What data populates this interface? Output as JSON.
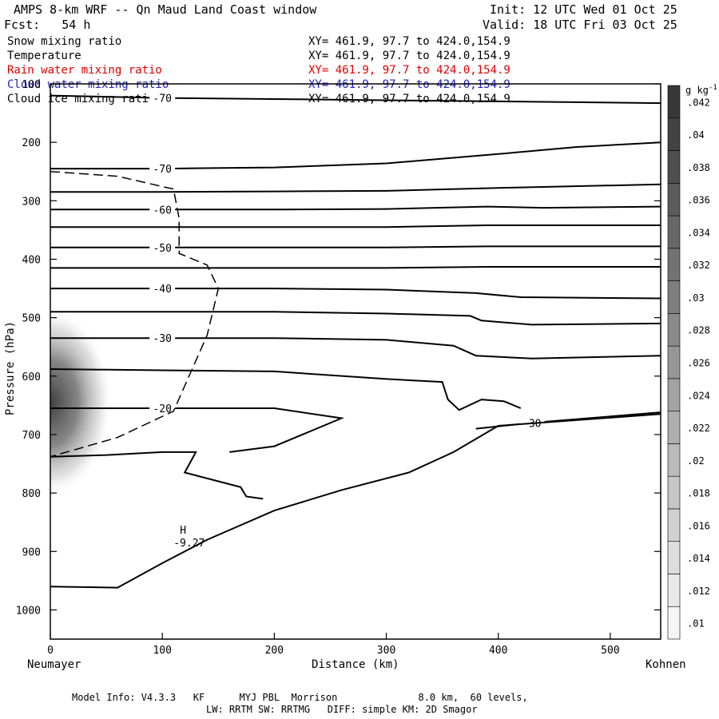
{
  "header": {
    "title": "AMPS 8-km WRF -- Qn Maud Land Coast window",
    "init": "Init: 12 UTC Wed 01 Oct 25",
    "fcst": "Fcst:   54 h",
    "valid": "Valid: 18 UTC Fri 03 Oct 25"
  },
  "fields": [
    {
      "name": "Snow mixing ratio",
      "xy": "XY= 461.9, 97.7 to 424.0,154.9",
      "color": "#000000"
    },
    {
      "name": "Temperature",
      "xy": "XY= 461.9, 97.7 to 424.0,154.9",
      "color": "#000000"
    },
    {
      "name": "Rain water mixing ratio",
      "xy": "XY= 461.9, 97.7 to 424.0,154.9",
      "color": "#e00000"
    },
    {
      "name": "Cloud water mixing ratio",
      "xy": "XY= 461.9, 97.7 to 424.0,154.9",
      "color": "#2020c0"
    },
    {
      "name": "Cloud ice mixing ratio",
      "xy": "XY= 461.9, 97.7 to 424.0,154.9",
      "color": "#000000"
    }
  ],
  "chart_data": {
    "type": "heatmap",
    "xlabel": "Distance (km)",
    "ylabel": "Pressure (hPa)",
    "xlim": [
      0,
      545
    ],
    "ylim": [
      1050,
      100
    ],
    "x_ticks": [
      0,
      100,
      200,
      300,
      400,
      500
    ],
    "y_ticks": [
      100,
      200,
      300,
      400,
      500,
      600,
      700,
      800,
      900,
      1000
    ],
    "left_endpoint": "Neumayer",
    "right_endpoint": "Kohnen",
    "colorbar": {
      "unit": "g kg",
      "unit_exp": "-1",
      "levels": [
        0.01,
        0.012,
        0.014,
        0.016,
        0.018,
        0.02,
        0.022,
        0.024,
        0.026,
        0.028,
        0.03,
        0.032,
        0.034,
        0.036,
        0.038,
        0.04,
        0.042
      ],
      "labels": [
        ".01",
        ".012",
        ".014",
        ".016",
        ".018",
        ".02",
        ".022",
        ".024",
        ".026",
        ".028",
        ".03",
        ".032",
        ".034",
        ".036",
        ".038",
        ".04",
        ".042"
      ]
    },
    "snow_max": {
      "x": 0,
      "p": 645,
      "value": 0.03
    },
    "temperature_contours": [
      {
        "label": "-70",
        "points": [
          [
            0,
            120
          ],
          [
            100,
            124
          ],
          [
            200,
            126
          ],
          [
            300,
            128
          ],
          [
            400,
            130
          ],
          [
            545,
            133
          ]
        ]
      },
      {
        "label": "-70",
        "points": [
          [
            0,
            245
          ],
          [
            100,
            245
          ],
          [
            200,
            243
          ],
          [
            300,
            236
          ],
          [
            400,
            220
          ],
          [
            470,
            208
          ],
          [
            545,
            200
          ]
        ]
      },
      {
        "label": "",
        "points": [
          [
            0,
            285
          ],
          [
            100,
            285
          ],
          [
            200,
            284
          ],
          [
            300,
            283
          ],
          [
            400,
            278
          ],
          [
            545,
            272
          ]
        ]
      },
      {
        "label": "-60",
        "points": [
          [
            0,
            315
          ],
          [
            100,
            315
          ],
          [
            200,
            315
          ],
          [
            300,
            314
          ],
          [
            390,
            310
          ],
          [
            440,
            312
          ],
          [
            545,
            310
          ]
        ]
      },
      {
        "label": "",
        "points": [
          [
            0,
            345
          ],
          [
            100,
            345
          ],
          [
            200,
            345
          ],
          [
            300,
            345
          ],
          [
            390,
            342
          ],
          [
            440,
            342
          ],
          [
            545,
            342
          ]
        ]
      },
      {
        "label": "-50",
        "points": [
          [
            0,
            380
          ],
          [
            100,
            380
          ],
          [
            200,
            380
          ],
          [
            300,
            380
          ],
          [
            390,
            378
          ],
          [
            440,
            378
          ],
          [
            545,
            378
          ]
        ]
      },
      {
        "label": "",
        "points": [
          [
            0,
            415
          ],
          [
            100,
            415
          ],
          [
            200,
            415
          ],
          [
            300,
            415
          ],
          [
            390,
            413
          ],
          [
            440,
            413
          ],
          [
            545,
            413
          ]
        ]
      },
      {
        "label": "-40",
        "points": [
          [
            0,
            450
          ],
          [
            100,
            450
          ],
          [
            200,
            450
          ],
          [
            300,
            452
          ],
          [
            380,
            458
          ],
          [
            420,
            465
          ],
          [
            545,
            467
          ]
        ]
      },
      {
        "label": "",
        "points": [
          [
            0,
            490
          ],
          [
            100,
            490
          ],
          [
            200,
            490
          ],
          [
            300,
            493
          ],
          [
            375,
            497
          ],
          [
            385,
            505
          ],
          [
            430,
            512
          ],
          [
            545,
            510
          ]
        ]
      },
      {
        "label": "-30",
        "points": [
          [
            0,
            535
          ],
          [
            100,
            535
          ],
          [
            200,
            535
          ],
          [
            300,
            538
          ],
          [
            360,
            548
          ],
          [
            380,
            565
          ],
          [
            430,
            570
          ],
          [
            545,
            565
          ]
        ]
      },
      {
        "label": "",
        "points": [
          [
            0,
            588
          ],
          [
            100,
            590
          ],
          [
            200,
            592
          ],
          [
            300,
            605
          ],
          [
            350,
            610
          ],
          [
            355,
            640
          ],
          [
            365,
            658
          ],
          [
            385,
            640
          ],
          [
            405,
            643
          ],
          [
            420,
            655
          ]
        ]
      },
      {
        "label": "-20",
        "points": [
          [
            0,
            655
          ],
          [
            100,
            655
          ],
          [
            200,
            655
          ],
          [
            260,
            672
          ],
          [
            200,
            720
          ],
          [
            160,
            730
          ]
        ]
      },
      {
        "label": "-30",
        "points": [
          [
            380,
            690
          ],
          [
            430,
            680
          ],
          [
            545,
            662
          ]
        ]
      },
      {
        "label": "",
        "points": [
          [
            0,
            738
          ],
          [
            50,
            735
          ],
          [
            100,
            730
          ],
          [
            130,
            730
          ],
          [
            120,
            765
          ],
          [
            170,
            790
          ],
          [
            175,
            806
          ],
          [
            190,
            810
          ]
        ]
      }
    ],
    "annotation": {
      "label": "H",
      "value": "-9.27",
      "x": 120,
      "p": 875
    }
  },
  "footer": {
    "line1": "Model Info: V4.3.3   KF      MYJ PBL  Morrison              8.0 km,  60 levels,",
    "line2": "LW: RRTM SW: RRTMG   DIFF: simple KM: 2D Smagor"
  }
}
